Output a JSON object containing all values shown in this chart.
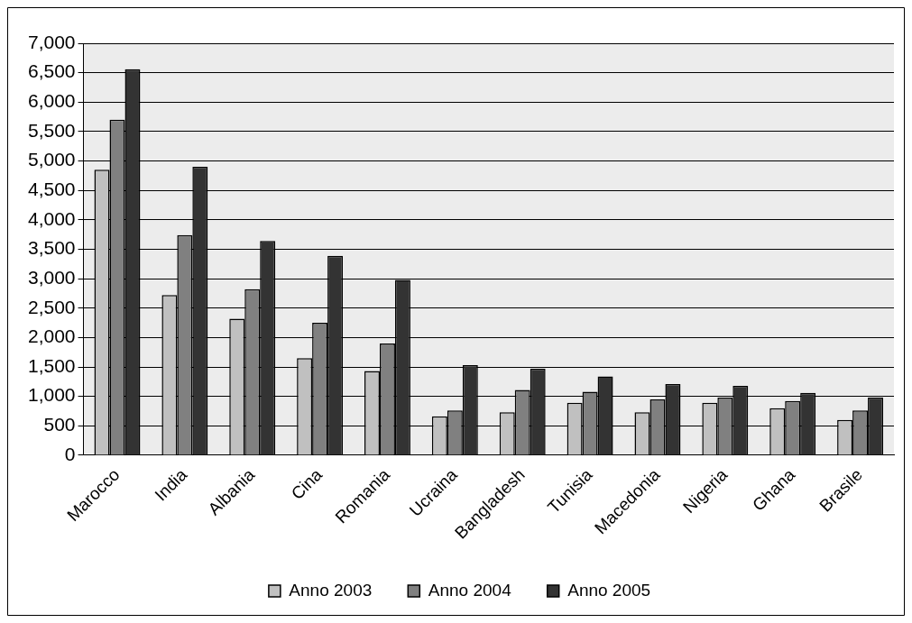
{
  "chart_data": {
    "type": "bar",
    "categories": [
      "Marocco",
      "India",
      "Albania",
      "Cina",
      "Romania",
      "Ucraina",
      "Bangladesh",
      "Tunisia",
      "Macedonia",
      "Nigeria",
      "Ghana",
      "Brasile"
    ],
    "series": [
      {
        "name": "Anno 2003",
        "color": "#c0c0c0",
        "values": [
          4850,
          2720,
          2320,
          1650,
          1430,
          660,
          730,
          890,
          730,
          890,
          800,
          600
        ]
      },
      {
        "name": "Anno 2004",
        "color": "#808080",
        "values": [
          5700,
          3740,
          2820,
          2250,
          1900,
          760,
          1110,
          1080,
          950,
          980,
          920,
          760
        ]
      },
      {
        "name": "Anno 2005",
        "color": "#333333",
        "values": [
          6560,
          4900,
          3640,
          3390,
          2980,
          1530,
          1470,
          1340,
          1210,
          1180,
          1060,
          980
        ]
      }
    ],
    "ylim": [
      0,
      7000
    ],
    "yticks": [
      0,
      500,
      {
        "value": 1000,
        "label": "1,000"
      },
      {
        "value": 1500,
        "label": "1,500"
      },
      {
        "value": 2000,
        "label": "2,000"
      },
      {
        "value": 2500,
        "label": "2,500"
      },
      {
        "value": 3000,
        "label": "3,000"
      },
      {
        "value": 3500,
        "label": "3,500"
      },
      {
        "value": 4000,
        "label": "4,000"
      },
      {
        "value": 4500,
        "label": "4,500"
      },
      {
        "value": 5000,
        "label": "5,000"
      },
      {
        "value": 5500,
        "label": "5,500"
      },
      {
        "value": 6000,
        "label": "6,000"
      },
      {
        "value": 6500,
        "label": "6,500"
      },
      {
        "value": 7000,
        "label": "7,000"
      }
    ],
    "grid": "y",
    "legend": "bottom"
  }
}
